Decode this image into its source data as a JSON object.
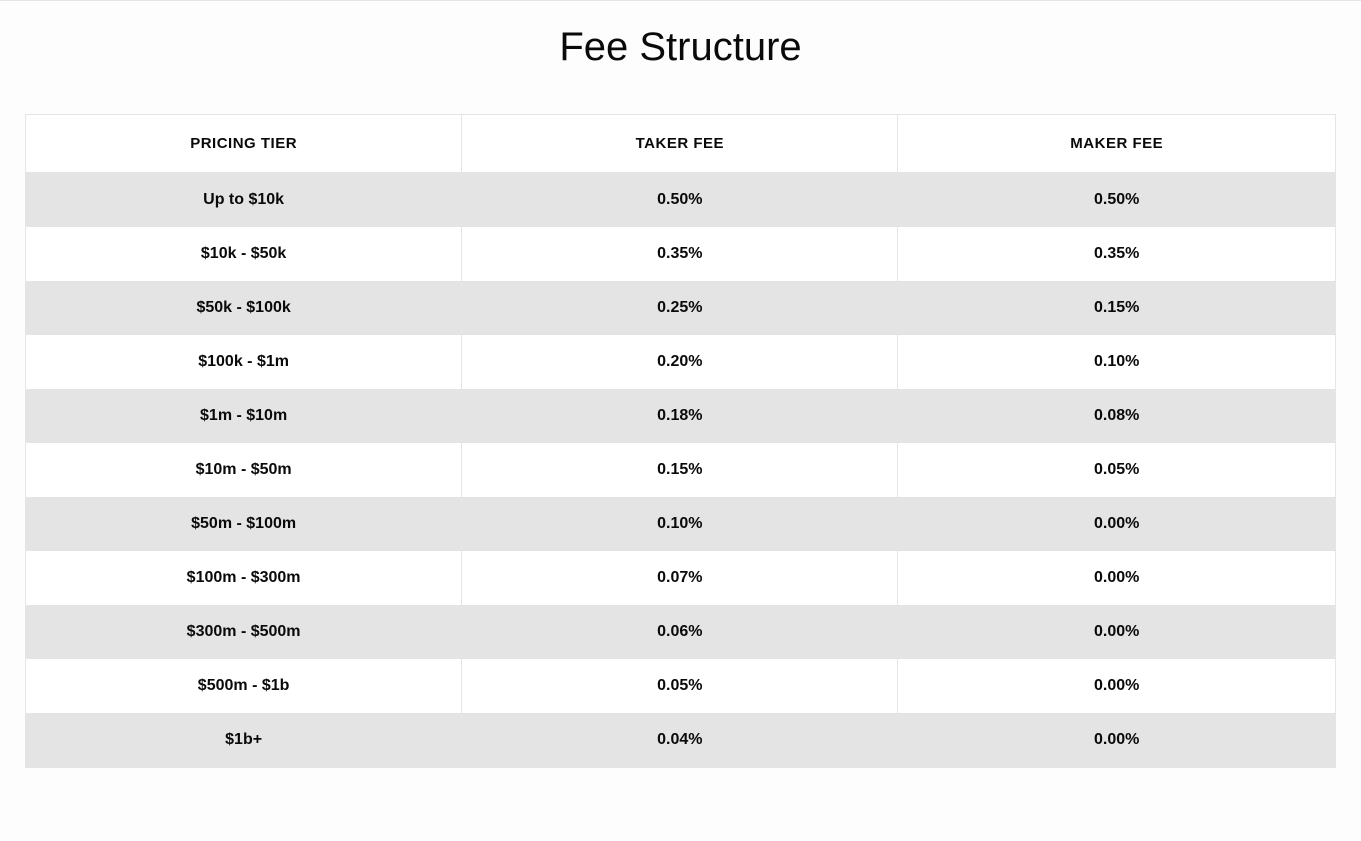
{
  "title": "Fee Structure",
  "table": {
    "type": "table",
    "background_color": "#fdfdfd",
    "border_color": "#e5e5e5",
    "stripe_colors": [
      "#e4e4e4",
      "#ffffff"
    ],
    "header_fontsize": 15,
    "cell_fontsize": 16,
    "cell_fontweight": 700,
    "text_color": "#0a0a0a",
    "columns": [
      {
        "label": "PRICING TIER",
        "width": "33.3%"
      },
      {
        "label": "TAKER FEE",
        "width": "33.3%"
      },
      {
        "label": "MAKER FEE",
        "width": "33.4%"
      }
    ],
    "rows": [
      [
        "Up to $10k",
        "0.50%",
        "0.50%"
      ],
      [
        "$10k - $50k",
        "0.35%",
        "0.35%"
      ],
      [
        "$50k - $100k",
        "0.25%",
        "0.15%"
      ],
      [
        "$100k - $1m",
        "0.20%",
        "0.10%"
      ],
      [
        "$1m - $10m",
        "0.18%",
        "0.08%"
      ],
      [
        "$10m - $50m",
        "0.15%",
        "0.05%"
      ],
      [
        "$50m - $100m",
        "0.10%",
        "0.00%"
      ],
      [
        "$100m - $300m",
        "0.07%",
        "0.00%"
      ],
      [
        "$300m - $500m",
        "0.06%",
        "0.00%"
      ],
      [
        "$500m - $1b",
        "0.05%",
        "0.00%"
      ],
      [
        "$1b+",
        "0.04%",
        "0.00%"
      ]
    ]
  }
}
